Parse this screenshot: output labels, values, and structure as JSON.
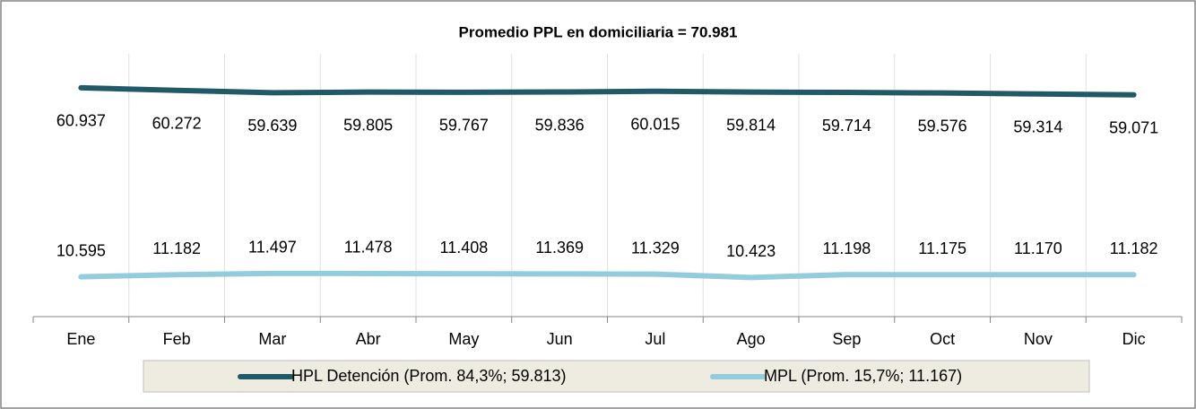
{
  "chart_data": {
    "type": "line",
    "title": "Promedio PPL en domiciliaria = 70.981",
    "categories": [
      "Ene",
      "Feb",
      "Mar",
      "Abr",
      "May",
      "Jun",
      "Jul",
      "Ago",
      "Sep",
      "Oct",
      "Nov",
      "Dic"
    ],
    "series": [
      {
        "name": "HPL Detención (Prom. 84,3%; 59.813)",
        "color": "#215968",
        "values": [
          60937,
          60272,
          59639,
          59805,
          59767,
          59836,
          60015,
          59814,
          59714,
          59576,
          59314,
          59071
        ],
        "value_labels": [
          "60.937",
          "60.272",
          "59.639",
          "59.805",
          "59.767",
          "59.836",
          "60.015",
          "59.814",
          "59.714",
          "59.576",
          "59.314",
          "59.071"
        ]
      },
      {
        "name": "MPL (Prom. 15,7%; 11.167)",
        "color": "#93cddd",
        "values": [
          10595,
          11182,
          11497,
          11478,
          11408,
          11369,
          11329,
          10423,
          11198,
          11175,
          11170,
          11182
        ],
        "value_labels": [
          "10.595",
          "11.182",
          "11.497",
          "11.478",
          "11.408",
          "11.369",
          "11.329",
          "10.423",
          "11.198",
          "11.175",
          "11.170",
          "11.182"
        ]
      }
    ],
    "ylim": [
      0,
      70000
    ],
    "grid": true,
    "legend": "bottom"
  }
}
